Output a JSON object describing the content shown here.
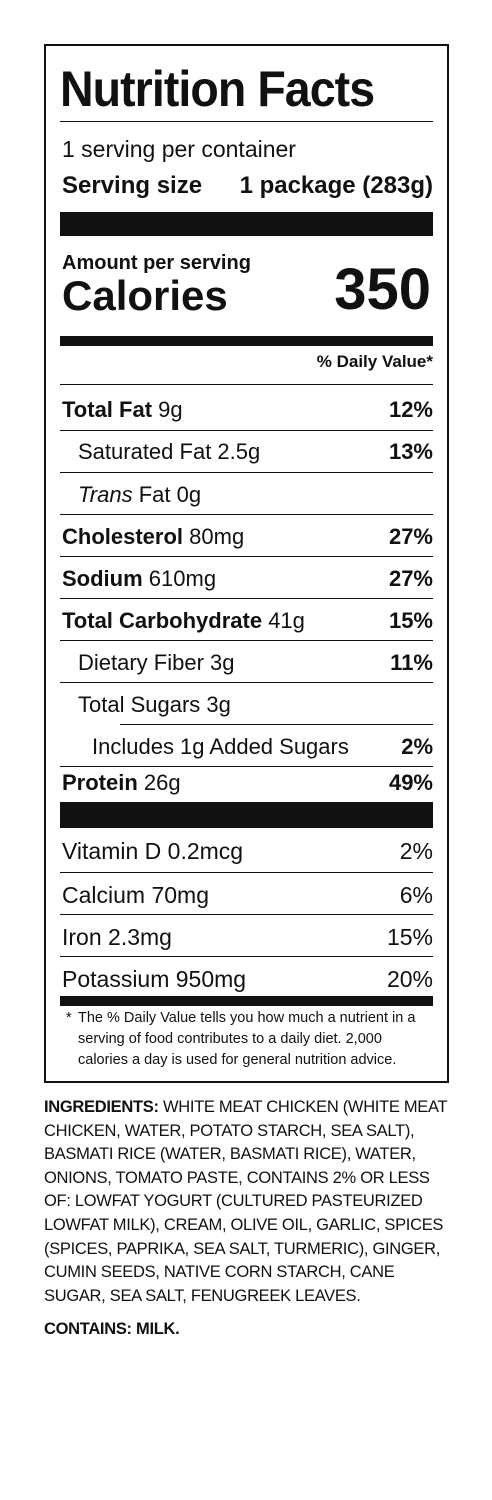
{
  "title": "Nutrition Facts",
  "servings_per_container": "1 serving per container",
  "serving_size_label": "Serving size",
  "serving_size_value": "1 package (283g)",
  "amount_per_serving": "Amount per serving",
  "calories_label": "Calories",
  "calories_value": "350",
  "dv_header": "% Daily Value*",
  "nutrients": [
    {
      "name": "Total Fat",
      "amount": "9g",
      "dv": "12%"
    },
    {
      "name": "Saturated Fat 2.5g",
      "dv": "13%"
    },
    {
      "name_italic": "Trans",
      "name_rest": " Fat 0g"
    },
    {
      "name": "Cholesterol",
      "amount": "80mg",
      "dv": "27%"
    },
    {
      "name": "Sodium",
      "amount": "610mg",
      "dv": "27%"
    },
    {
      "name": "Total Carbohydrate",
      "amount": "41g",
      "dv": "15%"
    },
    {
      "name": "Dietary Fiber 3g",
      "dv": "11%"
    },
    {
      "name": "Total Sugars 3g"
    },
    {
      "name": "Includes 1g Added Sugars",
      "dv": "2%"
    },
    {
      "name": "Protein",
      "amount": "26g",
      "dv": "49%"
    }
  ],
  "vitamins": [
    {
      "name": "Vitamin D 0.2mcg",
      "dv": "2%"
    },
    {
      "name": "Calcium 70mg",
      "dv": "6%"
    },
    {
      "name": "Iron 2.3mg",
      "dv": "15%"
    },
    {
      "name": "Potassium 950mg",
      "dv": "20%"
    }
  ],
  "footnote_star": "*",
  "footnote": "The % Daily Value tells you how much a nutrient in a serving of food contributes to a daily diet. 2,000 calories a day is used for general nutrition advice.",
  "ingredients_label": "INGREDIENTS:",
  "ingredients_text": " WHITE MEAT CHICKEN (WHITE MEAT CHICKEN, WATER, POTATO STARCH, SEA SALT), BASMATI RICE (WATER, BASMATI RICE), WATER, ONIONS, TOMATO PASTE, CONTAINS 2% OR LESS OF: LOWFAT YOGURT (CULTURED PASTEURIZED LOWFAT MILK), CREAM, OLIVE OIL, GARLIC, SPICES (SPICES, PAPRIKA, SEA SALT, TURMERIC), GINGER, CUMIN SEEDS, NATIVE CORN STARCH, CANE SUGAR, SEA SALT, FENUGREEK LEAVES.",
  "contains": "CONTAINS: MILK."
}
